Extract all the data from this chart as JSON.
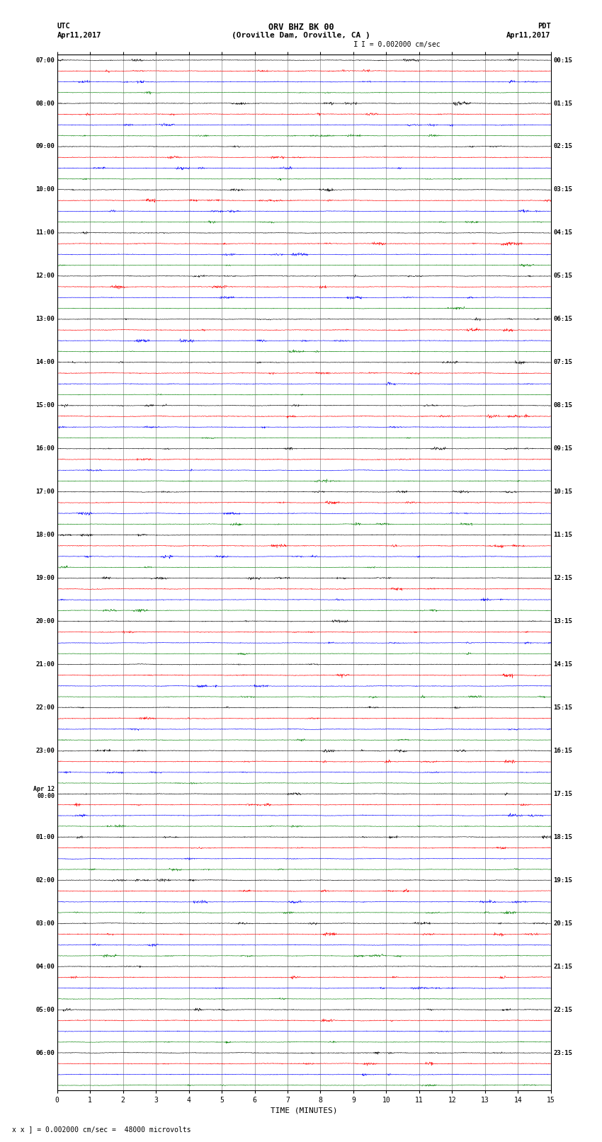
{
  "title_line1": "ORV BHZ BK 00",
  "title_line2": "(Oroville Dam, Oroville, CA )",
  "title_line3": "I = 0.002000 cm/sec",
  "label_left_top": "UTC",
  "label_left_date": "Apr11,2017",
  "label_right_top": "PDT",
  "label_right_date": "Apr11,2017",
  "xlabel": "TIME (MINUTES)",
  "footer": "x ] = 0.002000 cm/sec =  48000 microvolts",
  "xlim": [
    0,
    15
  ],
  "xticks": [
    0,
    1,
    2,
    3,
    4,
    5,
    6,
    7,
    8,
    9,
    10,
    11,
    12,
    13,
    14,
    15
  ],
  "trace_colors": [
    "black",
    "red",
    "blue",
    "green"
  ],
  "left_hour_labels": [
    "07:00",
    "08:00",
    "09:00",
    "10:00",
    "11:00",
    "12:00",
    "13:00",
    "14:00",
    "15:00",
    "16:00",
    "17:00",
    "18:00",
    "19:00",
    "20:00",
    "21:00",
    "22:00",
    "23:00",
    "Apr 12\n00:00",
    "01:00",
    "02:00",
    "03:00",
    "04:00",
    "05:00",
    "06:00"
  ],
  "right_hour_labels": [
    "00:15",
    "01:15",
    "02:15",
    "03:15",
    "04:15",
    "05:15",
    "06:15",
    "07:15",
    "08:15",
    "09:15",
    "10:15",
    "11:15",
    "12:15",
    "13:15",
    "14:15",
    "15:15",
    "16:15",
    "17:15",
    "18:15",
    "19:15",
    "20:15",
    "21:15",
    "22:15",
    "23:15"
  ],
  "bg_color": "white",
  "grid_color": "#888888",
  "num_hours": 24,
  "traces_per_hour": 4,
  "noise_seed": 42,
  "trace_amplitude": 0.035,
  "trace_linewidth": 0.4
}
